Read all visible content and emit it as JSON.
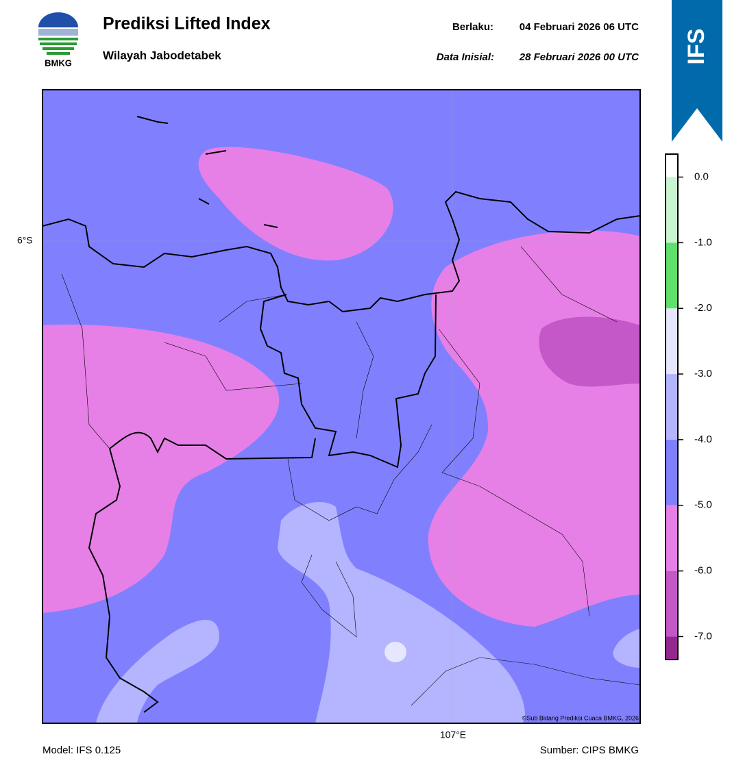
{
  "header": {
    "logo_text": "BMKG",
    "title": "Prediksi Lifted Index",
    "subtitle": "Wilayah Jabodetabek",
    "valid_label": "Berlaku:",
    "valid": "04 Februari 2026 06 UTC",
    "init_label": "Data Inisial:",
    "init": "28 Februari 2026 00 UTC",
    "badge": "IFS"
  },
  "map": {
    "lat_label": "6°S",
    "lon_label": "107°E",
    "credit": "©Sub Bidang Prediksi Cuaca BMKG, 2026"
  },
  "colorbar": {
    "lim": [
      -7.35,
      0.35
    ],
    "segments": [
      {
        "from": -7.35,
        "to": -7,
        "color": "#95288f"
      },
      {
        "from": -7,
        "to": -6,
        "color": "#c458c8"
      },
      {
        "from": -6,
        "to": -5,
        "color": "#e680e6"
      },
      {
        "from": -5,
        "to": -4,
        "color": "#8080ff"
      },
      {
        "from": -4,
        "to": -3,
        "color": "#b4b4ff"
      },
      {
        "from": -3,
        "to": -2,
        "color": "#e6e6ff"
      },
      {
        "from": -2,
        "to": -1,
        "color": "#5ee06a"
      },
      {
        "from": -1,
        "to": 0,
        "color": "#c8f5d0"
      },
      {
        "from": 0,
        "to": 0.35,
        "color": "#ffffff"
      }
    ],
    "ticks": [
      {
        "value": 0,
        "label": "0.0"
      },
      {
        "value": -1,
        "label": "-1.0"
      },
      {
        "value": -2,
        "label": "-2.0"
      },
      {
        "value": -3,
        "label": "-3.0"
      },
      {
        "value": -4,
        "label": "-4.0"
      },
      {
        "value": -5,
        "label": "-5.0"
      },
      {
        "value": -6,
        "label": "-6.0"
      },
      {
        "value": -7,
        "label": "-7.0"
      }
    ]
  },
  "footer": {
    "model": "Model: IFS 0.125",
    "source": "Sumber: CIPS BMKG"
  }
}
